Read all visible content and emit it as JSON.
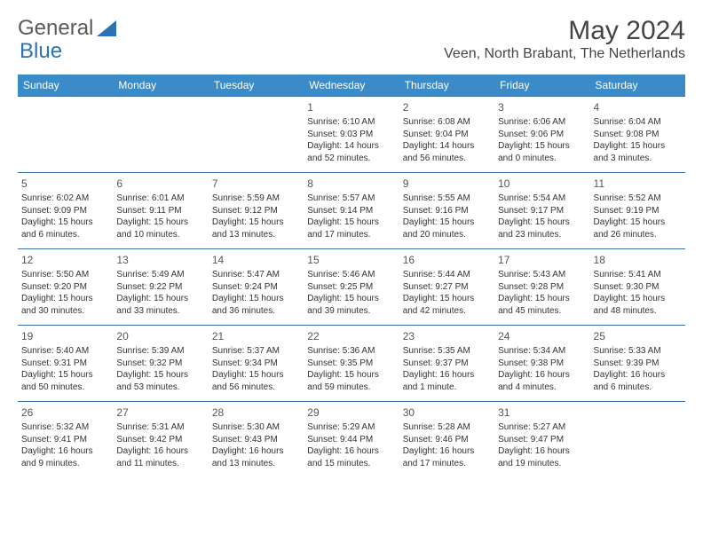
{
  "brand": {
    "part1": "General",
    "part2": "Blue",
    "part2_color": "#2d72b5",
    "logo_fill": "#2d72b5"
  },
  "title": "May 2024",
  "location": "Veen, North Brabant, The Netherlands",
  "header_bg": "#3b8bc8",
  "header_text": "#ffffff",
  "border_color": "#3b6ea5",
  "days_of_week": [
    "Sunday",
    "Monday",
    "Tuesday",
    "Wednesday",
    "Thursday",
    "Friday",
    "Saturday"
  ],
  "weeks": [
    [
      null,
      null,
      null,
      {
        "n": "1",
        "sunrise": "6:10 AM",
        "sunset": "9:03 PM",
        "daylight": "14 hours and 52 minutes."
      },
      {
        "n": "2",
        "sunrise": "6:08 AM",
        "sunset": "9:04 PM",
        "daylight": "14 hours and 56 minutes."
      },
      {
        "n": "3",
        "sunrise": "6:06 AM",
        "sunset": "9:06 PM",
        "daylight": "15 hours and 0 minutes."
      },
      {
        "n": "4",
        "sunrise": "6:04 AM",
        "sunset": "9:08 PM",
        "daylight": "15 hours and 3 minutes."
      }
    ],
    [
      {
        "n": "5",
        "sunrise": "6:02 AM",
        "sunset": "9:09 PM",
        "daylight": "15 hours and 6 minutes."
      },
      {
        "n": "6",
        "sunrise": "6:01 AM",
        "sunset": "9:11 PM",
        "daylight": "15 hours and 10 minutes."
      },
      {
        "n": "7",
        "sunrise": "5:59 AM",
        "sunset": "9:12 PM",
        "daylight": "15 hours and 13 minutes."
      },
      {
        "n": "8",
        "sunrise": "5:57 AM",
        "sunset": "9:14 PM",
        "daylight": "15 hours and 17 minutes."
      },
      {
        "n": "9",
        "sunrise": "5:55 AM",
        "sunset": "9:16 PM",
        "daylight": "15 hours and 20 minutes."
      },
      {
        "n": "10",
        "sunrise": "5:54 AM",
        "sunset": "9:17 PM",
        "daylight": "15 hours and 23 minutes."
      },
      {
        "n": "11",
        "sunrise": "5:52 AM",
        "sunset": "9:19 PM",
        "daylight": "15 hours and 26 minutes."
      }
    ],
    [
      {
        "n": "12",
        "sunrise": "5:50 AM",
        "sunset": "9:20 PM",
        "daylight": "15 hours and 30 minutes."
      },
      {
        "n": "13",
        "sunrise": "5:49 AM",
        "sunset": "9:22 PM",
        "daylight": "15 hours and 33 minutes."
      },
      {
        "n": "14",
        "sunrise": "5:47 AM",
        "sunset": "9:24 PM",
        "daylight": "15 hours and 36 minutes."
      },
      {
        "n": "15",
        "sunrise": "5:46 AM",
        "sunset": "9:25 PM",
        "daylight": "15 hours and 39 minutes."
      },
      {
        "n": "16",
        "sunrise": "5:44 AM",
        "sunset": "9:27 PM",
        "daylight": "15 hours and 42 minutes."
      },
      {
        "n": "17",
        "sunrise": "5:43 AM",
        "sunset": "9:28 PM",
        "daylight": "15 hours and 45 minutes."
      },
      {
        "n": "18",
        "sunrise": "5:41 AM",
        "sunset": "9:30 PM",
        "daylight": "15 hours and 48 minutes."
      }
    ],
    [
      {
        "n": "19",
        "sunrise": "5:40 AM",
        "sunset": "9:31 PM",
        "daylight": "15 hours and 50 minutes."
      },
      {
        "n": "20",
        "sunrise": "5:39 AM",
        "sunset": "9:32 PM",
        "daylight": "15 hours and 53 minutes."
      },
      {
        "n": "21",
        "sunrise": "5:37 AM",
        "sunset": "9:34 PM",
        "daylight": "15 hours and 56 minutes."
      },
      {
        "n": "22",
        "sunrise": "5:36 AM",
        "sunset": "9:35 PM",
        "daylight": "15 hours and 59 minutes."
      },
      {
        "n": "23",
        "sunrise": "5:35 AM",
        "sunset": "9:37 PM",
        "daylight": "16 hours and 1 minute."
      },
      {
        "n": "24",
        "sunrise": "5:34 AM",
        "sunset": "9:38 PM",
        "daylight": "16 hours and 4 minutes."
      },
      {
        "n": "25",
        "sunrise": "5:33 AM",
        "sunset": "9:39 PM",
        "daylight": "16 hours and 6 minutes."
      }
    ],
    [
      {
        "n": "26",
        "sunrise": "5:32 AM",
        "sunset": "9:41 PM",
        "daylight": "16 hours and 9 minutes."
      },
      {
        "n": "27",
        "sunrise": "5:31 AM",
        "sunset": "9:42 PM",
        "daylight": "16 hours and 11 minutes."
      },
      {
        "n": "28",
        "sunrise": "5:30 AM",
        "sunset": "9:43 PM",
        "daylight": "16 hours and 13 minutes."
      },
      {
        "n": "29",
        "sunrise": "5:29 AM",
        "sunset": "9:44 PM",
        "daylight": "16 hours and 15 minutes."
      },
      {
        "n": "30",
        "sunrise": "5:28 AM",
        "sunset": "9:46 PM",
        "daylight": "16 hours and 17 minutes."
      },
      {
        "n": "31",
        "sunrise": "5:27 AM",
        "sunset": "9:47 PM",
        "daylight": "16 hours and 19 minutes."
      },
      null
    ]
  ],
  "labels": {
    "sunrise": "Sunrise:",
    "sunset": "Sunset:",
    "daylight": "Daylight:"
  }
}
